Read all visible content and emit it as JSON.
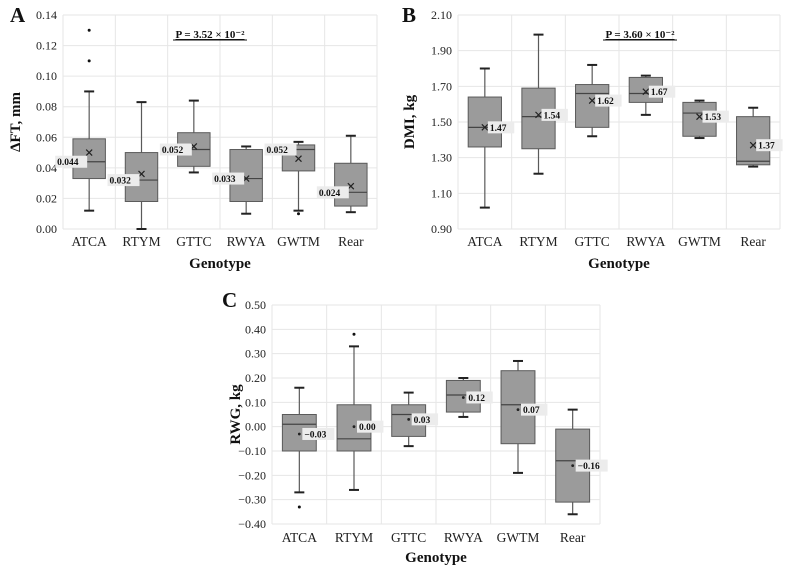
{
  "chart_data": [
    {
      "type": "box",
      "panel": "A",
      "annotation": "P = 3.52 × 10⁻²",
      "xlabel": "Genotype",
      "ylabel": "ΔFT, mm",
      "ylim": [
        0,
        0.14
      ],
      "yticks": [
        "0.00",
        "0.02",
        "0.04",
        "0.06",
        "0.08",
        "0.10",
        "0.12",
        "0.14"
      ],
      "label_side": "left-median",
      "grid": true,
      "categories": [
        "ATCA",
        "RTYM",
        "GTTC",
        "RWYA",
        "GWTM",
        "Rear"
      ],
      "boxes": [
        {
          "min": 0.012,
          "q1": 0.033,
          "median": 0.044,
          "q3": 0.059,
          "max": 0.09,
          "mean": 0.05,
          "outliers": [
            0.11,
            0.13
          ],
          "label": "0.044"
        },
        {
          "min": 0.0,
          "q1": 0.018,
          "median": 0.032,
          "q3": 0.05,
          "max": 0.083,
          "mean": 0.036,
          "outliers": [],
          "label": "0.032"
        },
        {
          "min": 0.037,
          "q1": 0.041,
          "median": 0.052,
          "q3": 0.063,
          "max": 0.084,
          "mean": 0.054,
          "outliers": [],
          "label": "0.052"
        },
        {
          "min": 0.01,
          "q1": 0.018,
          "median": 0.033,
          "q3": 0.052,
          "max": 0.054,
          "mean": 0.033,
          "outliers": [],
          "label": "0.033"
        },
        {
          "min": 0.012,
          "q1": 0.038,
          "median": 0.052,
          "q3": 0.055,
          "max": 0.057,
          "mean": 0.046,
          "outliers": [
            0.01
          ],
          "label": "0.052"
        },
        {
          "min": 0.011,
          "q1": 0.015,
          "median": 0.024,
          "q3": 0.043,
          "max": 0.061,
          "mean": 0.028,
          "outliers": [],
          "label": "0.024"
        }
      ]
    },
    {
      "type": "box",
      "panel": "B",
      "annotation": "P = 3.60 × 10⁻²",
      "xlabel": "Genotype",
      "ylabel": "DMI, kg",
      "ylim": [
        0.9,
        2.1
      ],
      "yticks": [
        "0.90",
        "1.10",
        "1.30",
        "1.50",
        "1.70",
        "1.90",
        "2.10"
      ],
      "label_side": "right-mean",
      "grid": true,
      "categories": [
        "ATCA",
        "RTYM",
        "GTTC",
        "RWYA",
        "GWTM",
        "Rear"
      ],
      "boxes": [
        {
          "min": 1.02,
          "q1": 1.36,
          "median": 1.47,
          "q3": 1.64,
          "max": 1.8,
          "mean": 1.47,
          "outliers": [],
          "label": "1.47"
        },
        {
          "min": 1.21,
          "q1": 1.35,
          "median": 1.53,
          "q3": 1.69,
          "max": 1.99,
          "mean": 1.54,
          "outliers": [],
          "label": "1.54"
        },
        {
          "min": 1.42,
          "q1": 1.47,
          "median": 1.66,
          "q3": 1.71,
          "max": 1.82,
          "mean": 1.62,
          "outliers": [],
          "label": "1.62"
        },
        {
          "min": 1.54,
          "q1": 1.61,
          "median": 1.66,
          "q3": 1.75,
          "max": 1.76,
          "mean": 1.67,
          "outliers": [],
          "label": "1.67"
        },
        {
          "min": 1.41,
          "q1": 1.42,
          "median": 1.55,
          "q3": 1.61,
          "max": 1.62,
          "mean": 1.53,
          "outliers": [],
          "label": "1.53"
        },
        {
          "min": 1.25,
          "q1": 1.26,
          "median": 1.28,
          "q3": 1.53,
          "max": 1.58,
          "mean": 1.37,
          "outliers": [],
          "label": "1.37"
        }
      ]
    },
    {
      "type": "box",
      "panel": "C",
      "annotation": "",
      "xlabel": "Genotype",
      "ylabel": "RWG, kg",
      "ylim": [
        -0.4,
        0.5
      ],
      "yticks": [
        "−0.40",
        "−0.30",
        "−0.20",
        "−0.10",
        "0.00",
        "0.10",
        "0.20",
        "0.30",
        "0.40",
        "0.50"
      ],
      "label_side": "right-mean",
      "grid": true,
      "categories": [
        "ATCA",
        "RTYM",
        "GTTC",
        "RWYA",
        "GWTM",
        "Rear"
      ],
      "boxes": [
        {
          "min": -0.27,
          "q1": -0.1,
          "median": 0.01,
          "q3": 0.05,
          "max": 0.16,
          "mean": -0.03,
          "outliers": [
            -0.33
          ],
          "label": "−0.03"
        },
        {
          "min": -0.26,
          "q1": -0.1,
          "median": -0.05,
          "q3": 0.09,
          "max": 0.33,
          "mean": 0.0,
          "outliers": [
            0.38
          ],
          "label": "0.00"
        },
        {
          "min": -0.08,
          "q1": -0.04,
          "median": 0.05,
          "q3": 0.09,
          "max": 0.14,
          "mean": 0.03,
          "outliers": [],
          "label": "0.03"
        },
        {
          "min": 0.04,
          "q1": 0.06,
          "median": 0.13,
          "q3": 0.19,
          "max": 0.2,
          "mean": 0.12,
          "outliers": [],
          "label": "0.12"
        },
        {
          "min": -0.19,
          "q1": -0.07,
          "median": 0.09,
          "q3": 0.23,
          "max": 0.27,
          "mean": 0.07,
          "outliers": [],
          "label": "0.07"
        },
        {
          "min": -0.36,
          "q1": -0.31,
          "median": -0.14,
          "q3": -0.01,
          "max": 0.07,
          "mean": -0.16,
          "outliers": [],
          "label": "−0.16"
        }
      ]
    }
  ],
  "colors": {
    "box_fill": "#9b9b9b",
    "box_stroke": "#5a5a5a",
    "grid": "#e6e6e6",
    "label_bg": "#ececec"
  }
}
